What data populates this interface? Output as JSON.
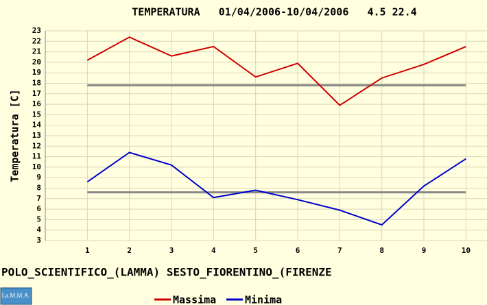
{
  "chart_data": {
    "type": "line",
    "title": "TEMPERATURA   01/04/2006-10/04/2006   4.5 22.4",
    "y_label": "Temperatura [C]",
    "subtitle": "POLO_SCIENTIFICO_(LAMMA) SESTO_FIORENTINO_(FIRENZE",
    "logo": "La.M.M.A.",
    "x": [
      1,
      2,
      3,
      4,
      5,
      6,
      7,
      8,
      9,
      10
    ],
    "xlim": [
      0,
      10.5
    ],
    "xticks": [
      1,
      2,
      3,
      4,
      5,
      6,
      7,
      8,
      9,
      10
    ],
    "ylim": [
      3,
      23
    ],
    "yticks": [
      3,
      4,
      5,
      6,
      7,
      8,
      9,
      10,
      11,
      12,
      13,
      14,
      15,
      16,
      17,
      18,
      19,
      20,
      21,
      22,
      23
    ],
    "grid": true,
    "series": [
      {
        "name": "Massima",
        "color": "#cc0000",
        "values": [
          20.2,
          22.4,
          20.6,
          21.5,
          18.6,
          19.9,
          15.9,
          18.5,
          19.8,
          21.5
        ]
      },
      {
        "name": "Minima",
        "color": "#0000cc",
        "values": [
          8.6,
          11.4,
          10.2,
          7.1,
          7.8,
          6.9,
          5.9,
          4.5,
          8.2,
          10.8
        ]
      }
    ],
    "reference_lines": [
      17.8,
      7.6
    ],
    "reference_color": "#888888"
  }
}
